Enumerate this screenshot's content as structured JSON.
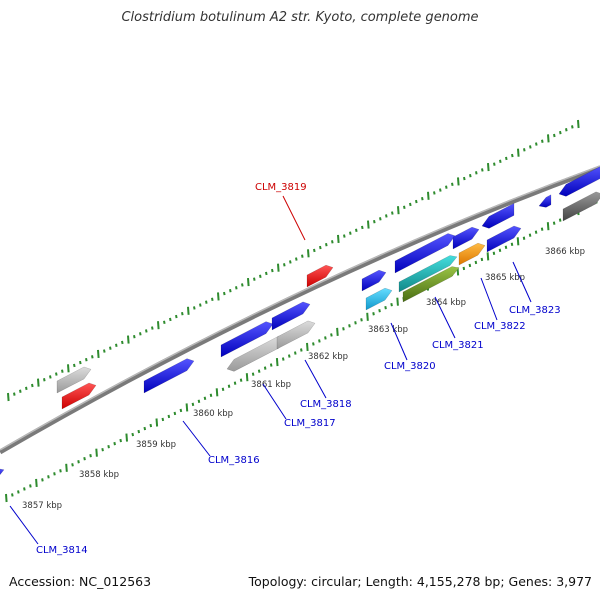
{
  "title": "Clostridium botulinum A2 str. Kyoto, complete genome",
  "footer": {
    "accession": "Accession: NC_012563",
    "topology": "Topology: circular; Length: 4,155,278 bp; Genes: 3,977"
  },
  "scale_ticks": [
    {
      "label": "3857 kbp"
    },
    {
      "label": "3858 kbp"
    },
    {
      "label": "3859 kbp"
    },
    {
      "label": "3860 kbp"
    },
    {
      "label": "3861 kbp"
    },
    {
      "label": "3862 kbp"
    },
    {
      "label": "3863 kbp"
    },
    {
      "label": "3864 kbp"
    },
    {
      "label": "3865 kbp"
    },
    {
      "label": "3866 kbp"
    }
  ],
  "gene_labels": [
    {
      "text": "CLM_3814",
      "color": "#0000cc"
    },
    {
      "text": "CLM_3816",
      "color": "#0000cc"
    },
    {
      "text": "CLM_3817",
      "color": "#0000cc"
    },
    {
      "text": "CLM_3818",
      "color": "#0000cc"
    },
    {
      "text": "CLM_3819",
      "color": "#cc0000"
    },
    {
      "text": "CLM_3820",
      "color": "#0000cc"
    },
    {
      "text": "CLM_3821",
      "color": "#0000cc"
    },
    {
      "text": "CLM_3822",
      "color": "#0000cc"
    },
    {
      "text": "CLM_3823",
      "color": "#0000cc"
    }
  ],
  "colors": {
    "backbone": "#777777",
    "tick": "#2e8b2e",
    "blue_gene": "#1a1aee",
    "gray_gene": "#bdbdbd",
    "red_gene": "#ee1111",
    "cyan_gene": "#29c6ee",
    "teal_gene": "#29b3b3",
    "olive_gene": "#6e9a2b",
    "orange_gene": "#ff9900",
    "darkgray_gene": "#666666"
  }
}
